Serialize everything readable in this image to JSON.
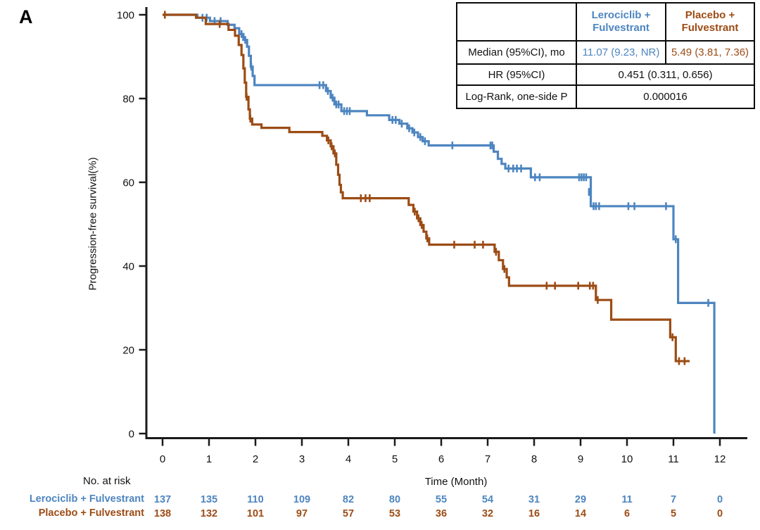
{
  "panel_label": "A",
  "colors": {
    "lerociclib_blue": "#4d85c0",
    "placebo_brown": "#9c4c15",
    "axis_black": "#1a1a1a"
  },
  "y_axis": {
    "label": "Progression-free survival(%)",
    "ticks": [
      0,
      20,
      40,
      60,
      80,
      100
    ]
  },
  "x_axis": {
    "label": "Time (Month)",
    "ticks": [
      0,
      1,
      2,
      3,
      4,
      5,
      6,
      7,
      8,
      9,
      10,
      11,
      12
    ]
  },
  "stats_table": {
    "col2_header": "Lerociclib +\nFulvestrant",
    "col3_header": "Placebo +\nFulvestrant",
    "rows": [
      {
        "label": "Median (95%CI), mo",
        "lerociclib": "11.07 (9.23, NR)",
        "placebo": "5.49 (3.81, 7.36)"
      },
      {
        "label": "HR (95%CI)",
        "combined": "0.451 (0.311, 0.656)"
      },
      {
        "label": "Log-Rank, one-side P",
        "combined": "0.000016"
      }
    ]
  },
  "risk_table": {
    "title": "No. at risk",
    "rows": [
      {
        "name": "Lerociclib + Fulvestrant",
        "counts": [
          137,
          135,
          110,
          109,
          82,
          80,
          55,
          54,
          31,
          29,
          11,
          7,
          0
        ]
      },
      {
        "name": "Placebo + Fulvestrant",
        "counts": [
          138,
          132,
          101,
          97,
          57,
          53,
          36,
          32,
          16,
          14,
          6,
          5,
          0
        ]
      }
    ]
  },
  "chart_data": {
    "type": "line",
    "subtype": "kaplan-meier-step",
    "title": "",
    "xlabel": "Time (Month)",
    "ylabel": "Progression-free survival(%)",
    "xlim": [
      0,
      12
    ],
    "ylim": [
      0,
      100
    ],
    "grid": false,
    "legend_position": "none",
    "series": [
      {
        "name": "Lerociclib + Fulvestrant",
        "median_months": 11.07,
        "steps": [
          [
            0,
            100
          ],
          [
            0.75,
            99.3
          ],
          [
            1.02,
            98.5
          ],
          [
            1.4,
            97.6
          ],
          [
            1.55,
            96.8
          ],
          [
            1.65,
            95.4
          ],
          [
            1.74,
            94.0
          ],
          [
            1.82,
            92.4
          ],
          [
            1.86,
            90.2
          ],
          [
            1.9,
            87.6
          ],
          [
            1.94,
            85.4
          ],
          [
            1.98,
            83.2
          ],
          [
            3.52,
            81.8
          ],
          [
            3.62,
            80.2
          ],
          [
            3.7,
            78.6
          ],
          [
            3.85,
            77.0
          ],
          [
            4.4,
            76.0
          ],
          [
            4.88,
            74.9
          ],
          [
            5.1,
            74.0
          ],
          [
            5.27,
            72.9
          ],
          [
            5.38,
            71.9
          ],
          [
            5.5,
            70.8
          ],
          [
            5.6,
            69.8
          ],
          [
            5.73,
            68.8
          ],
          [
            7.13,
            67.3
          ],
          [
            7.22,
            65.6
          ],
          [
            7.3,
            64.4
          ],
          [
            7.38,
            63.3
          ],
          [
            7.93,
            61.2
          ],
          [
            9.22,
            54.3
          ],
          [
            11.0,
            46.4
          ],
          [
            11.1,
            31.2
          ],
          [
            11.88,
            0
          ]
        ],
        "end_time": 11.88,
        "censors": [
          [
            0.86,
            99.3
          ],
          [
            0.95,
            99.3
          ],
          [
            1.12,
            98.5
          ],
          [
            1.25,
            98.5
          ],
          [
            1.7,
            95.4
          ],
          [
            1.78,
            94.0
          ],
          [
            1.91,
            87.6
          ],
          [
            3.38,
            83.2
          ],
          [
            3.46,
            83.2
          ],
          [
            3.56,
            81.8
          ],
          [
            3.66,
            80.2
          ],
          [
            3.74,
            78.6
          ],
          [
            3.79,
            78.6
          ],
          [
            3.91,
            77.0
          ],
          [
            3.97,
            77.0
          ],
          [
            4.03,
            77.0
          ],
          [
            4.95,
            74.9
          ],
          [
            5.02,
            74.9
          ],
          [
            5.15,
            74.0
          ],
          [
            5.31,
            72.9
          ],
          [
            5.42,
            71.9
          ],
          [
            5.55,
            70.8
          ],
          [
            5.65,
            69.8
          ],
          [
            6.24,
            68.8
          ],
          [
            7.06,
            68.8
          ],
          [
            7.1,
            68.8
          ],
          [
            7.45,
            63.3
          ],
          [
            7.55,
            63.3
          ],
          [
            7.63,
            63.3
          ],
          [
            7.72,
            63.3
          ],
          [
            8.02,
            61.2
          ],
          [
            8.12,
            61.2
          ],
          [
            8.97,
            61.2
          ],
          [
            9.02,
            61.2
          ],
          [
            9.07,
            61.2
          ],
          [
            9.12,
            61.2
          ],
          [
            9.18,
            57.7
          ],
          [
            9.28,
            54.3
          ],
          [
            9.33,
            54.3
          ],
          [
            9.4,
            54.3
          ],
          [
            10.03,
            54.3
          ],
          [
            10.16,
            54.3
          ],
          [
            10.84,
            54.3
          ],
          [
            11.05,
            46.4
          ],
          [
            11.75,
            31.2
          ]
        ]
      },
      {
        "name": "Placebo + Fulvestrant",
        "median_months": 5.49,
        "steps": [
          [
            0,
            100
          ],
          [
            0.72,
            99.3
          ],
          [
            0.93,
            97.8
          ],
          [
            1.42,
            96.4
          ],
          [
            1.56,
            95.0
          ],
          [
            1.64,
            92.8
          ],
          [
            1.7,
            90.4
          ],
          [
            1.74,
            87.2
          ],
          [
            1.77,
            83.8
          ],
          [
            1.8,
            80.4
          ],
          [
            1.85,
            77.4
          ],
          [
            1.88,
            75.2
          ],
          [
            1.93,
            73.8
          ],
          [
            2.13,
            73.0
          ],
          [
            2.73,
            72.0
          ],
          [
            3.44,
            71.1
          ],
          [
            3.54,
            70.0
          ],
          [
            3.62,
            68.6
          ],
          [
            3.68,
            66.9
          ],
          [
            3.74,
            64.2
          ],
          [
            3.78,
            61.8
          ],
          [
            3.81,
            59.4
          ],
          [
            3.84,
            57.6
          ],
          [
            3.88,
            56.2
          ],
          [
            5.3,
            54.6
          ],
          [
            5.4,
            53.0
          ],
          [
            5.48,
            51.4
          ],
          [
            5.55,
            49.8
          ],
          [
            5.62,
            48.2
          ],
          [
            5.68,
            46.6
          ],
          [
            5.74,
            45.1
          ],
          [
            7.15,
            43.4
          ],
          [
            7.24,
            41.4
          ],
          [
            7.33,
            39.3
          ],
          [
            7.41,
            37.3
          ],
          [
            7.46,
            35.3
          ],
          [
            9.33,
            31.9
          ],
          [
            9.66,
            27.2
          ],
          [
            10.93,
            23.0
          ],
          [
            11.05,
            17.3
          ]
        ],
        "end_time": 11.35,
        "censors": [
          [
            0.05,
            100
          ],
          [
            1.23,
            97.8
          ],
          [
            1.81,
            80.4
          ],
          [
            1.89,
            75.2
          ],
          [
            3.57,
            70.0
          ],
          [
            3.64,
            68.6
          ],
          [
            3.71,
            66.9
          ],
          [
            4.27,
            56.2
          ],
          [
            4.37,
            56.2
          ],
          [
            4.46,
            56.2
          ],
          [
            5.43,
            53.0
          ],
          [
            5.51,
            51.4
          ],
          [
            5.58,
            49.8
          ],
          [
            5.7,
            46.6
          ],
          [
            6.28,
            45.1
          ],
          [
            6.72,
            45.1
          ],
          [
            6.9,
            45.1
          ],
          [
            7.18,
            43.4
          ],
          [
            7.36,
            39.3
          ],
          [
            8.27,
            35.3
          ],
          [
            8.45,
            35.3
          ],
          [
            8.95,
            35.3
          ],
          [
            9.2,
            35.3
          ],
          [
            9.27,
            35.3
          ],
          [
            9.37,
            31.9
          ],
          [
            10.98,
            23.0
          ],
          [
            11.12,
            17.3
          ],
          [
            11.24,
            17.3
          ]
        ]
      }
    ]
  }
}
